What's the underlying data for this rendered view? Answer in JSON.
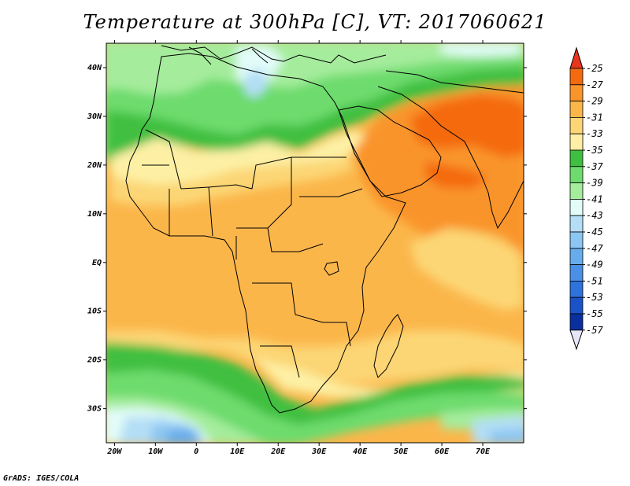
{
  "title": "Temperature at 300hPa [C], VT: 2017060621",
  "footer": "GrADS: IGES/COLA",
  "map": {
    "lon_labels": [
      "20W",
      "10W",
      "0",
      "10E",
      "20E",
      "30E",
      "40E",
      "50E",
      "60E",
      "70E"
    ],
    "lat_labels": [
      "40N",
      "30N",
      "20N",
      "10N",
      "EQ",
      "10S",
      "20S",
      "30S"
    ],
    "lon_range": [
      -22,
      80
    ],
    "lat_range": [
      -37,
      45
    ]
  },
  "colorbar": {
    "labels": [
      "-25",
      "-27",
      "-29",
      "-31",
      "-33",
      "-35",
      "-37",
      "-39",
      "-41",
      "-43",
      "-45",
      "-47",
      "-49",
      "-51",
      "-53",
      "-55",
      "-57"
    ],
    "colors": [
      "#e8361c",
      "#f46a10",
      "#f9942a",
      "#fbb64a",
      "#fcd674",
      "#fdf0a4",
      "#3fbf3f",
      "#6ddb6d",
      "#a5ec9c",
      "#e2fcf8",
      "#b4def6",
      "#8cc6f2",
      "#66acec",
      "#4990e6",
      "#2e72dc",
      "#1a52c8",
      "#0a30a0",
      "#101060"
    ],
    "top_arrow_color": "#e8361c",
    "bottom_arrow_color": "#e6e6fa"
  }
}
